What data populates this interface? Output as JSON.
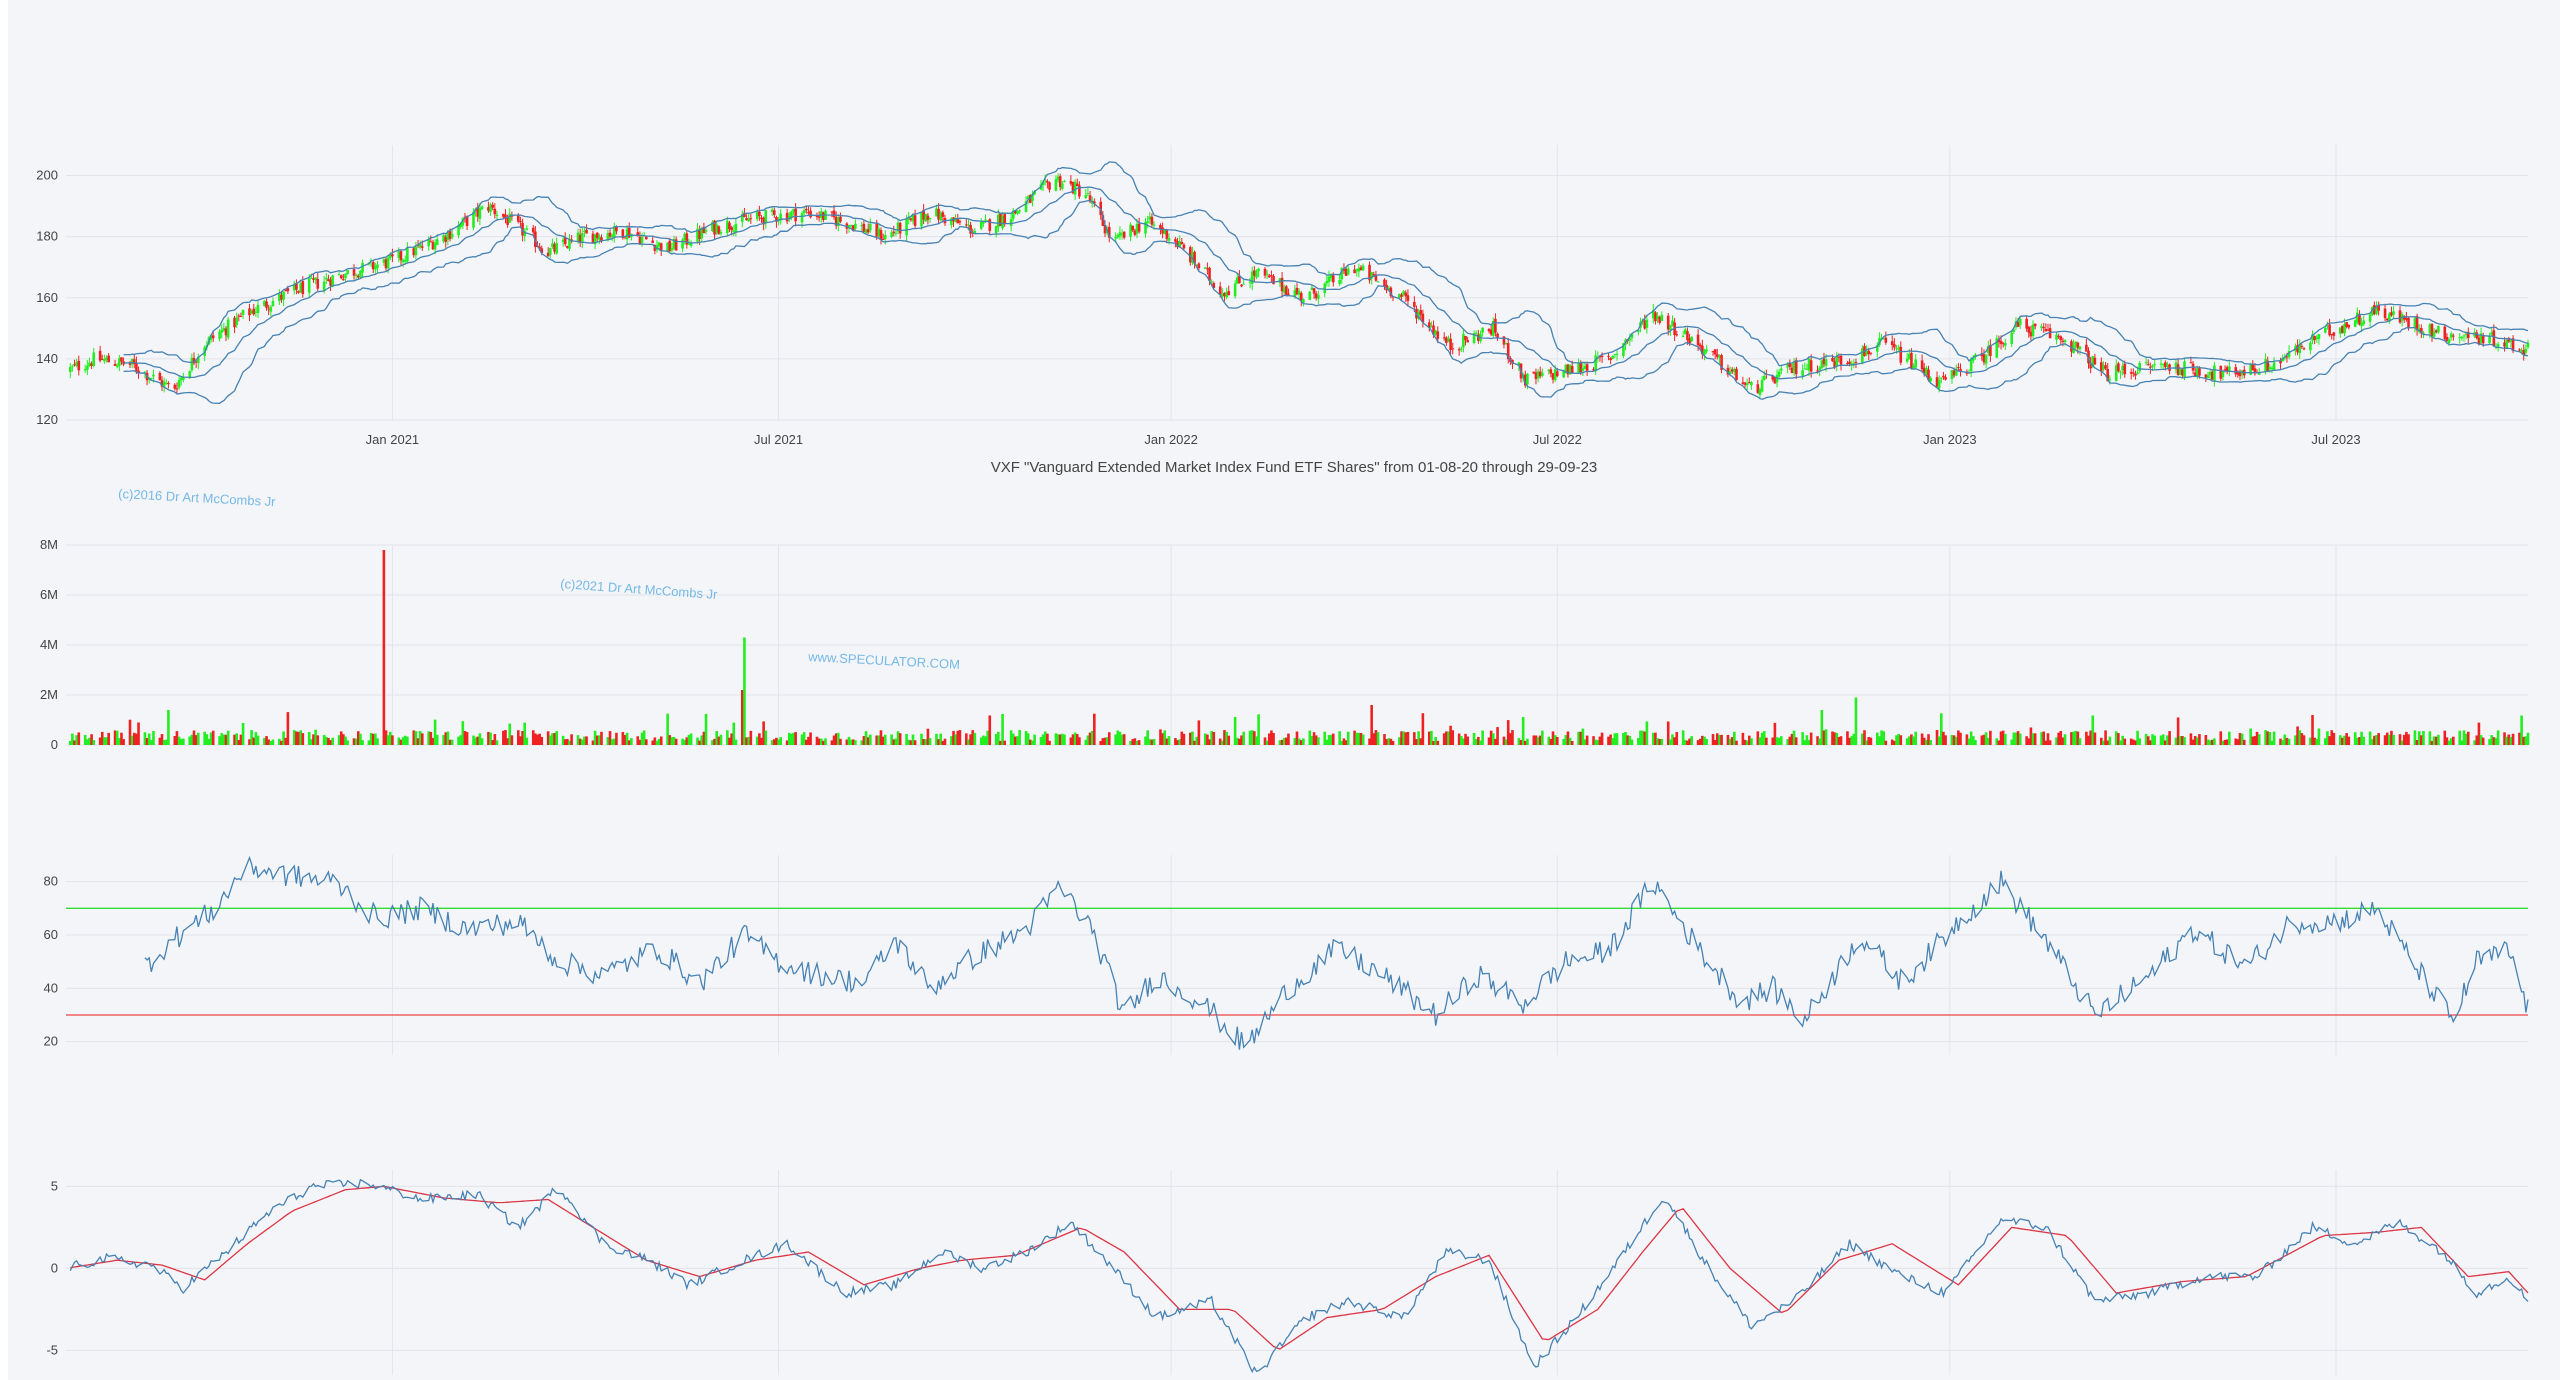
{
  "title": "VXF \"Vanguard Extended Market Index Fund ETF Shares\" from 01-08-20 through 29-09-23",
  "watermarks": [
    "(c)2016 Dr Art McCombs Jr",
    "(c)2021 Dr Art McCombs Jr",
    "www.SPECULATOR.COM"
  ],
  "colors": {
    "up": "#22ee22",
    "down": "#ee2222",
    "line": "#4682b4",
    "signal": "#dc3545",
    "overbought": "#33dd33",
    "oversold": "#ee4444",
    "grid": "#e2e4ea"
  },
  "x_axis": {
    "start": "2020-08-01",
    "end": "2023-09-29",
    "ticks": [
      {
        "date": "2021-01-01",
        "label": "Jan 2021"
      },
      {
        "date": "2021-07-01",
        "label": "Jul 2021"
      },
      {
        "date": "2022-01-01",
        "label": "Jan 2022"
      },
      {
        "date": "2022-07-01",
        "label": "Jul 2022"
      },
      {
        "date": "2023-01-01",
        "label": "Jan 2023"
      },
      {
        "date": "2023-07-01",
        "label": "Jul 2023"
      }
    ]
  },
  "chart_data": [
    {
      "type": "candlestick",
      "ylim": [
        120,
        210
      ],
      "yticks": [
        "120",
        "140",
        "160",
        "180",
        "200"
      ],
      "overlays": [
        "bollinger-upper",
        "bollinger-middle",
        "bollinger-lower"
      ],
      "path": [
        [
          "2020-08-01",
          136
        ],
        [
          "2020-08-15",
          140
        ],
        [
          "2020-09-01",
          138
        ],
        [
          "2020-09-20",
          130
        ],
        [
          "2020-10-05",
          145
        ],
        [
          "2020-10-25",
          155
        ],
        [
          "2020-11-15",
          162
        ],
        [
          "2020-12-10",
          168
        ],
        [
          "2021-01-01",
          172
        ],
        [
          "2021-01-25",
          180
        ],
        [
          "2021-02-15",
          190
        ],
        [
          "2021-03-01",
          183
        ],
        [
          "2021-03-15",
          175
        ],
        [
          "2021-04-01",
          180
        ],
        [
          "2021-04-20",
          182
        ],
        [
          "2021-05-10",
          176
        ],
        [
          "2021-06-01",
          183
        ],
        [
          "2021-06-20",
          186
        ],
        [
          "2021-07-15",
          188
        ],
        [
          "2021-08-05",
          184
        ],
        [
          "2021-08-20",
          180
        ],
        [
          "2021-09-10",
          188
        ],
        [
          "2021-10-01",
          182
        ],
        [
          "2021-10-20",
          188
        ],
        [
          "2021-11-08",
          199
        ],
        [
          "2021-11-22",
          194
        ],
        [
          "2021-12-05",
          178
        ],
        [
          "2021-12-20",
          185
        ],
        [
          "2022-01-01",
          180
        ],
        [
          "2022-01-25",
          162
        ],
        [
          "2022-02-10",
          168
        ],
        [
          "2022-03-05",
          160
        ],
        [
          "2022-03-28",
          170
        ],
        [
          "2022-04-20",
          160
        ],
        [
          "2022-05-12",
          144
        ],
        [
          "2022-06-01",
          150
        ],
        [
          "2022-06-16",
          133
        ],
        [
          "2022-07-05",
          136
        ],
        [
          "2022-07-25",
          140
        ],
        [
          "2022-08-15",
          155
        ],
        [
          "2022-09-01",
          147
        ],
        [
          "2022-09-30",
          130
        ],
        [
          "2022-10-20",
          137
        ],
        [
          "2022-11-15",
          140
        ],
        [
          "2022-12-01",
          145
        ],
        [
          "2022-12-28",
          132
        ],
        [
          "2023-01-15",
          140
        ],
        [
          "2023-02-02",
          151
        ],
        [
          "2023-02-25",
          146
        ],
        [
          "2023-03-15",
          135
        ],
        [
          "2023-04-10",
          138
        ],
        [
          "2023-05-10",
          135
        ],
        [
          "2023-06-01",
          138
        ],
        [
          "2023-06-25",
          148
        ],
        [
          "2023-07-20",
          156
        ],
        [
          "2023-08-20",
          148
        ],
        [
          "2023-09-10",
          147
        ],
        [
          "2023-09-29",
          143
        ]
      ]
    },
    {
      "type": "bar",
      "name": "volume",
      "ylim": [
        0,
        8000000
      ],
      "yticks": [
        "0",
        "2M",
        "4M",
        "6M",
        "8M"
      ],
      "typical_volume": 400000,
      "spikes": [
        [
          "2020-12-28",
          7800000,
          "down"
        ],
        [
          "2021-06-15",
          4300000,
          "up"
        ],
        [
          "2021-06-14",
          2200000,
          "down"
        ],
        [
          "2021-06-12",
          1400000,
          "down"
        ],
        [
          "2022-11-18",
          1900000,
          "up"
        ],
        [
          "2022-11-02",
          1400000,
          "up"
        ],
        [
          "2022-04-05",
          1600000,
          "down"
        ],
        [
          "2023-06-20",
          1200000,
          "down"
        ],
        [
          "2020-09-18",
          1400000,
          "up"
        ]
      ]
    },
    {
      "type": "line",
      "name": "rsi",
      "ylim": [
        15,
        90
      ],
      "yticks": [
        "20",
        "40",
        "60",
        "80"
      ],
      "overbought": 70,
      "oversold": 30,
      "path": [
        [
          "2020-09-05",
          47
        ],
        [
          "2020-09-20",
          58
        ],
        [
          "2020-10-10",
          70
        ],
        [
          "2020-10-25",
          86
        ],
        [
          "2020-11-15",
          82
        ],
        [
          "2020-12-05",
          80
        ],
        [
          "2020-12-25",
          66
        ],
        [
          "2021-01-15",
          70
        ],
        [
          "2021-02-05",
          62
        ],
        [
          "2021-03-01",
          65
        ],
        [
          "2021-03-20",
          50
        ],
        [
          "2021-04-10",
          45
        ],
        [
          "2021-05-05",
          55
        ],
        [
          "2021-05-25",
          42
        ],
        [
          "2021-06-15",
          60
        ],
        [
          "2021-07-01",
          50
        ],
        [
          "2021-07-20",
          45
        ],
        [
          "2021-08-10",
          42
        ],
        [
          "2021-08-25",
          58
        ],
        [
          "2021-09-10",
          40
        ],
        [
          "2021-10-01",
          52
        ],
        [
          "2021-10-25",
          62
        ],
        [
          "2021-11-10",
          78
        ],
        [
          "2021-11-25",
          62
        ],
        [
          "2021-12-10",
          30
        ],
        [
          "2021-12-25",
          45
        ],
        [
          "2022-01-15",
          35
        ],
        [
          "2022-02-05",
          18
        ],
        [
          "2022-02-25",
          40
        ],
        [
          "2022-03-20",
          55
        ],
        [
          "2022-04-10",
          45
        ],
        [
          "2022-05-05",
          30
        ],
        [
          "2022-05-25",
          45
        ],
        [
          "2022-06-15",
          34
        ],
        [
          "2022-07-05",
          50
        ],
        [
          "2022-07-25",
          54
        ],
        [
          "2022-08-15",
          80
        ],
        [
          "2022-09-05",
          55
        ],
        [
          "2022-09-25",
          35
        ],
        [
          "2022-10-10",
          40
        ],
        [
          "2022-10-25",
          28
        ],
        [
          "2022-11-20",
          60
        ],
        [
          "2022-12-10",
          42
        ],
        [
          "2023-01-05",
          65
        ],
        [
          "2023-01-25",
          80
        ],
        [
          "2023-02-15",
          58
        ],
        [
          "2023-03-10",
          30
        ],
        [
          "2023-04-05",
          45
        ],
        [
          "2023-04-25",
          62
        ],
        [
          "2023-05-20",
          48
        ],
        [
          "2023-06-10",
          65
        ],
        [
          "2023-07-01",
          65
        ],
        [
          "2023-07-20",
          70
        ],
        [
          "2023-08-10",
          45
        ],
        [
          "2023-08-25",
          28
        ],
        [
          "2023-09-05",
          50
        ],
        [
          "2023-09-20",
          54
        ],
        [
          "2023-09-29",
          32
        ]
      ]
    },
    {
      "type": "line",
      "name": "macd",
      "ylim": [
        -6.5,
        6
      ],
      "yticks": [
        "-5",
        "0",
        "5"
      ],
      "series": [
        {
          "role": "macd",
          "path": [
            [
              "2020-08-01",
              0.0
            ],
            [
              "2020-08-20",
              0.6
            ],
            [
              "2020-09-10",
              0.2
            ],
            [
              "2020-09-25",
              -1.2
            ],
            [
              "2020-10-15",
              1.0
            ],
            [
              "2020-11-05",
              3.5
            ],
            [
              "2020-11-25",
              5.0
            ],
            [
              "2020-12-20",
              5.2
            ],
            [
              "2021-01-15",
              4.2
            ],
            [
              "2021-02-10",
              4.5
            ],
            [
              "2021-03-01",
              2.5
            ],
            [
              "2021-03-20",
              5.0
            ],
            [
              "2021-04-10",
              1.5
            ],
            [
              "2021-05-01",
              0.5
            ],
            [
              "2021-05-20",
              -1.0
            ],
            [
              "2021-06-15",
              0.5
            ],
            [
              "2021-07-05",
              1.5
            ],
            [
              "2021-08-01",
              -1.5
            ],
            [
              "2021-08-25",
              -1.0
            ],
            [
              "2021-09-15",
              1.0
            ],
            [
              "2021-10-05",
              0.0
            ],
            [
              "2021-10-25",
              1.0
            ],
            [
              "2021-11-15",
              2.8
            ],
            [
              "2021-12-05",
              0.0
            ],
            [
              "2021-12-25",
              -3.0
            ],
            [
              "2022-01-20",
              -2.0
            ],
            [
              "2022-02-10",
              -6.5
            ],
            [
              "2022-03-05",
              -3.0
            ],
            [
              "2022-03-25",
              -2.0
            ],
            [
              "2022-04-20",
              -3.0
            ],
            [
              "2022-05-10",
              1.0
            ],
            [
              "2022-05-30",
              0.5
            ],
            [
              "2022-06-20",
              -6.0
            ],
            [
              "2022-07-10",
              -3.0
            ],
            [
              "2022-07-30",
              0.5
            ],
            [
              "2022-08-20",
              4.5
            ],
            [
              "2022-09-10",
              0.0
            ],
            [
              "2022-09-30",
              -3.5
            ],
            [
              "2022-10-20",
              -2.0
            ],
            [
              "2022-11-15",
              1.5
            ],
            [
              "2022-12-10",
              -0.5
            ],
            [
              "2022-12-30",
              -1.5
            ],
            [
              "2023-01-25",
              3.0
            ],
            [
              "2023-02-15",
              2.5
            ],
            [
              "2023-03-10",
              -2.0
            ],
            [
              "2023-04-05",
              -1.5
            ],
            [
              "2023-04-30",
              -0.5
            ],
            [
              "2023-05-25",
              -0.5
            ],
            [
              "2023-06-20",
              2.5
            ],
            [
              "2023-07-10",
              1.5
            ],
            [
              "2023-07-30",
              2.8
            ],
            [
              "2023-08-20",
              1.0
            ],
            [
              "2023-09-05",
              -1.5
            ],
            [
              "2023-09-20",
              -0.5
            ],
            [
              "2023-09-29",
              -2.0
            ]
          ]
        },
        {
          "role": "signal",
          "path": [
            [
              "2020-08-01",
              0.0
            ],
            [
              "2020-08-25",
              0.5
            ],
            [
              "2020-09-15",
              0.2
            ],
            [
              "2020-10-05",
              -0.7
            ],
            [
              "2020-10-25",
              1.5
            ],
            [
              "2020-11-15",
              3.5
            ],
            [
              "2020-12-10",
              4.8
            ],
            [
              "2020-12-28",
              5.0
            ],
            [
              "2021-01-25",
              4.3
            ],
            [
              "2021-02-20",
              4.0
            ],
            [
              "2021-03-15",
              4.2
            ],
            [
              "2021-04-05",
              2.5
            ],
            [
              "2021-04-30",
              0.5
            ],
            [
              "2021-05-25",
              -0.5
            ],
            [
              "2021-06-20",
              0.5
            ],
            [
              "2021-07-15",
              1.0
            ],
            [
              "2021-08-10",
              -1.0
            ],
            [
              "2021-09-05",
              0.0
            ],
            [
              "2021-09-25",
              0.5
            ],
            [
              "2021-10-20",
              0.8
            ],
            [
              "2021-11-20",
              2.5
            ],
            [
              "2021-12-10",
              1.0
            ],
            [
              "2022-01-05",
              -2.5
            ],
            [
              "2022-01-30",
              -2.5
            ],
            [
              "2022-02-20",
              -5.0
            ],
            [
              "2022-03-15",
              -3.0
            ],
            [
              "2022-04-10",
              -2.5
            ],
            [
              "2022-05-05",
              -0.5
            ],
            [
              "2022-05-30",
              0.8
            ],
            [
              "2022-06-25",
              -4.5
            ],
            [
              "2022-07-20",
              -2.5
            ],
            [
              "2022-08-10",
              1.0
            ],
            [
              "2022-08-28",
              3.8
            ],
            [
              "2022-09-20",
              0.0
            ],
            [
              "2022-10-15",
              -2.8
            ],
            [
              "2022-11-10",
              0.5
            ],
            [
              "2022-12-05",
              1.5
            ],
            [
              "2023-01-05",
              -1.0
            ],
            [
              "2023-01-30",
              2.5
            ],
            [
              "2023-02-25",
              2.0
            ],
            [
              "2023-03-20",
              -1.5
            ],
            [
              "2023-04-20",
              -0.8
            ],
            [
              "2023-05-20",
              -0.5
            ],
            [
              "2023-06-25",
              2.0
            ],
            [
              "2023-07-20",
              2.2
            ],
            [
              "2023-08-10",
              2.5
            ],
            [
              "2023-09-01",
              -0.5
            ],
            [
              "2023-09-20",
              -0.2
            ],
            [
              "2023-09-29",
              -1.5
            ]
          ]
        }
      ]
    }
  ]
}
